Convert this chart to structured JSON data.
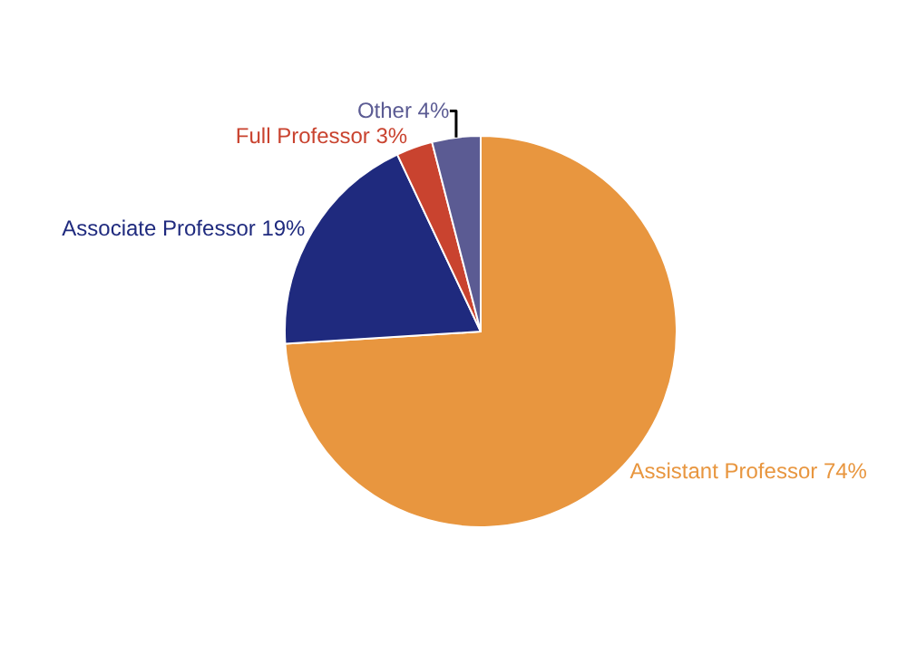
{
  "chart_data": {
    "type": "pie",
    "categories": [
      "Assistant Professor",
      "Associate Professor",
      "Full Professor",
      "Other"
    ],
    "values": [
      74,
      19,
      3,
      4
    ],
    "value_labels": [
      "74%",
      "19%",
      "3%",
      "4%"
    ],
    "colors": [
      "#e8963f",
      "#1f2a7e",
      "#c9432f",
      "#5b5b93"
    ],
    "legend": false
  }
}
